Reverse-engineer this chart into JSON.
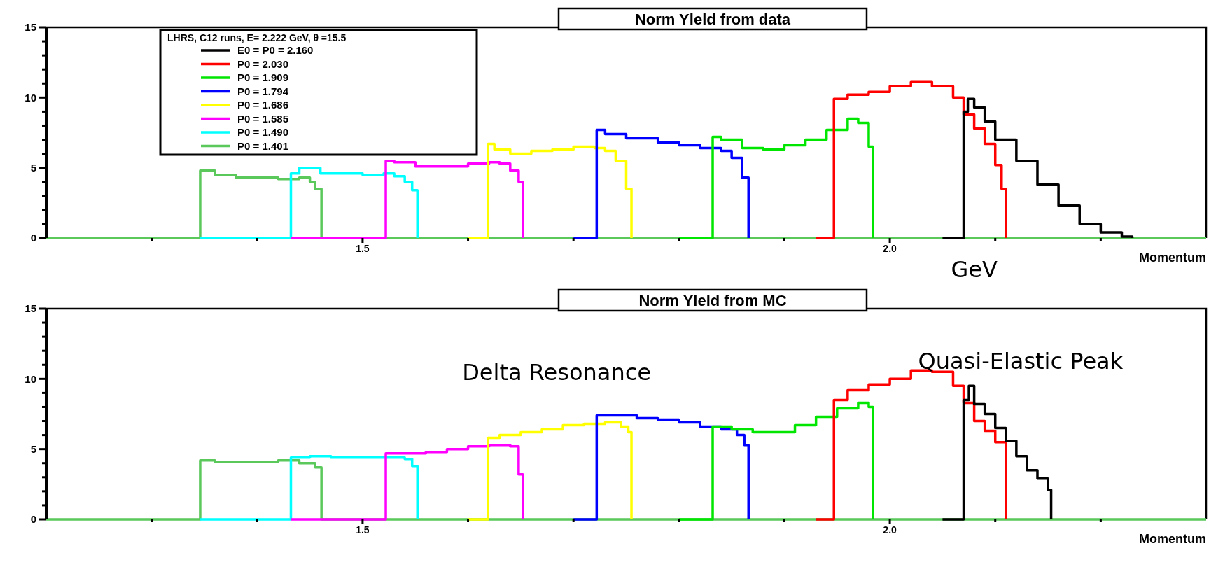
{
  "chart_data": [
    {
      "type": "step",
      "title": "Norm Yleld from data",
      "xlabel": "Momentum",
      "legend": "top left",
      "legend_title": "LHRS, C12 runs, E= 2.222 GeV, θ =15.5",
      "annotations": [
        "GeV"
      ],
      "xlim": [
        1.2,
        2.3
      ],
      "xticks": [
        {
          "value": 1.3,
          "label": null
        },
        {
          "value": 1.4,
          "label": null
        },
        {
          "value": 1.5,
          "label": "1.5"
        },
        {
          "value": 1.6,
          "label": null
        },
        {
          "value": 1.7,
          "label": null
        },
        {
          "value": 1.8,
          "label": null
        },
        {
          "value": 1.9,
          "label": null
        },
        {
          "value": 2.0,
          "label": "2.0"
        },
        {
          "value": 2.1,
          "label": null
        },
        {
          "value": 2.2,
          "label": null
        }
      ],
      "ylim": [
        0,
        15
      ],
      "yticks": [
        0,
        {
          "value": 1,
          "label": null
        },
        {
          "value": 2,
          "label": null
        },
        {
          "value": 3,
          "label": null
        },
        {
          "value": 4,
          "label": null
        },
        5,
        {
          "value": 6,
          "label": null
        },
        {
          "value": 7,
          "label": null
        },
        {
          "value": 8,
          "label": null
        },
        {
          "value": 9,
          "label": null
        },
        10,
        {
          "value": 11,
          "label": null
        },
        {
          "value": 12,
          "label": null
        },
        {
          "value": 13,
          "label": null
        },
        {
          "value": 14,
          "label": null
        },
        15
      ],
      "series": [
        {
          "name": "E0 = P0 = 2.160",
          "color": "#000000",
          "x": [
            2.05,
            2.07,
            2.074,
            2.08,
            2.09,
            2.1,
            2.12,
            2.14,
            2.16,
            2.18,
            2.2,
            2.22,
            2.23
          ],
          "values": [
            0,
            9.0,
            9.9,
            9.3,
            8.3,
            7.0,
            5.5,
            3.8,
            2.3,
            1.0,
            0.4,
            0.1,
            0
          ]
        },
        {
          "name": "P0 = 2.030",
          "color": "#ff0000",
          "x": [
            1.93,
            1.947,
            1.96,
            1.98,
            2.0,
            2.02,
            2.04,
            2.06,
            2.07,
            2.08,
            2.09,
            2.1,
            2.106,
            2.11
          ],
          "values": [
            0,
            9.9,
            10.2,
            10.4,
            10.8,
            11.1,
            10.8,
            10.0,
            8.8,
            7.8,
            6.7,
            5.2,
            3.5,
            0
          ]
        },
        {
          "name": "P0 = 1.909",
          "color": "#00e600",
          "x": [
            1.8,
            1.832,
            1.84,
            1.86,
            1.88,
            1.9,
            1.92,
            1.94,
            1.96,
            1.97,
            1.98,
            1.984
          ],
          "values": [
            0,
            7.2,
            7.0,
            6.4,
            6.3,
            6.6,
            7.0,
            7.7,
            8.5,
            8.2,
            6.5,
            0
          ]
        },
        {
          "name": "P0 = 1.794",
          "color": "#0000ff",
          "x": [
            1.7,
            1.722,
            1.73,
            1.75,
            1.78,
            1.8,
            1.82,
            1.84,
            1.85,
            1.86,
            1.866
          ],
          "values": [
            0,
            7.7,
            7.4,
            7.1,
            6.8,
            6.6,
            6.4,
            6.2,
            5.7,
            4.3,
            0
          ]
        },
        {
          "name": "P0 = 1.686",
          "color": "#ffff00",
          "x": [
            1.6,
            1.619,
            1.625,
            1.64,
            1.66,
            1.68,
            1.7,
            1.72,
            1.73,
            1.74,
            1.75,
            1.755
          ],
          "values": [
            0,
            6.7,
            6.3,
            6.0,
            6.2,
            6.3,
            6.5,
            6.4,
            6.2,
            5.5,
            3.5,
            0
          ]
        },
        {
          "name": "P0 = 1.585",
          "color": "#ff00ff",
          "x": [
            1.432,
            1.522,
            1.53,
            1.55,
            1.58,
            1.6,
            1.62,
            1.63,
            1.64,
            1.648,
            1.652
          ],
          "values": [
            0,
            5.5,
            5.4,
            5.1,
            5.1,
            5.3,
            5.4,
            5.3,
            4.8,
            4.0,
            0
          ]
        },
        {
          "name": "P0 = 1.490",
          "color": "#00ffff",
          "x": [
            1.346,
            1.432,
            1.44,
            1.46,
            1.48,
            1.5,
            1.52,
            1.53,
            1.54,
            1.547,
            1.552
          ],
          "values": [
            0,
            4.6,
            5.0,
            4.6,
            4.6,
            4.5,
            4.6,
            4.4,
            4.0,
            3.4,
            0
          ]
        },
        {
          "name": "P0 = 1.401",
          "color": "#5ac85a",
          "x": [
            1.2,
            1.346,
            1.36,
            1.38,
            1.4,
            1.42,
            1.44,
            1.45,
            1.455,
            1.461,
            2.3
          ],
          "values": [
            0,
            4.8,
            4.5,
            4.3,
            4.3,
            4.2,
            4.3,
            4.0,
            3.5,
            0,
            0
          ]
        }
      ]
    },
    {
      "type": "step",
      "title": "Norm Yleld from MC",
      "xlabel": "Momentum",
      "legend": false,
      "annotations": [
        "Delta Resonance",
        "Quasi-Elastic Peak"
      ],
      "xlim": [
        1.2,
        2.3
      ],
      "xticks": [
        {
          "value": 1.3,
          "label": null
        },
        {
          "value": 1.4,
          "label": null
        },
        {
          "value": 1.5,
          "label": "1.5"
        },
        {
          "value": 1.6,
          "label": null
        },
        {
          "value": 1.7,
          "label": null
        },
        {
          "value": 1.8,
          "label": null
        },
        {
          "value": 1.9,
          "label": null
        },
        {
          "value": 2.0,
          "label": "2.0"
        },
        {
          "value": 2.1,
          "label": null
        },
        {
          "value": 2.2,
          "label": null
        }
      ],
      "ylim": [
        0,
        15
      ],
      "yticks": [
        0,
        {
          "value": 1,
          "label": null
        },
        {
          "value": 2,
          "label": null
        },
        {
          "value": 3,
          "label": null
        },
        {
          "value": 4,
          "label": null
        },
        5,
        {
          "value": 6,
          "label": null
        },
        {
          "value": 7,
          "label": null
        },
        {
          "value": 8,
          "label": null
        },
        {
          "value": 9,
          "label": null
        },
        10,
        {
          "value": 11,
          "label": null
        },
        {
          "value": 12,
          "label": null
        },
        {
          "value": 13,
          "label": null
        },
        {
          "value": 14,
          "label": null
        },
        15
      ],
      "series": [
        {
          "color": "#000000",
          "x": [
            2.05,
            2.07,
            2.075,
            2.08,
            2.09,
            2.1,
            2.11,
            2.12,
            2.13,
            2.14,
            2.15,
            2.153
          ],
          "values": [
            0,
            8.5,
            9.5,
            8.2,
            7.5,
            6.5,
            5.6,
            4.5,
            3.5,
            2.9,
            2.1,
            0
          ]
        },
        {
          "color": "#ff0000",
          "x": [
            1.93,
            1.947,
            1.96,
            1.98,
            2.0,
            2.02,
            2.04,
            2.06,
            2.07,
            2.08,
            2.09,
            2.1,
            2.11
          ],
          "values": [
            0,
            8.5,
            9.2,
            9.6,
            10.0,
            10.6,
            10.5,
            9.5,
            8.3,
            7.0,
            6.3,
            5.5,
            0
          ]
        },
        {
          "color": "#00e600",
          "x": [
            1.8,
            1.832,
            1.85,
            1.87,
            1.89,
            1.91,
            1.93,
            1.95,
            1.97,
            1.98,
            1.984
          ],
          "values": [
            0,
            6.6,
            6.4,
            6.2,
            6.2,
            6.7,
            7.3,
            7.9,
            8.3,
            8.0,
            0
          ]
        },
        {
          "color": "#0000ff",
          "x": [
            1.7,
            1.722,
            1.74,
            1.76,
            1.78,
            1.8,
            1.82,
            1.84,
            1.855,
            1.862,
            1.866
          ],
          "values": [
            0,
            7.4,
            7.4,
            7.2,
            7.1,
            6.9,
            6.6,
            6.4,
            6.0,
            5.3,
            0
          ]
        },
        {
          "color": "#ffff00",
          "x": [
            1.6,
            1.619,
            1.63,
            1.65,
            1.67,
            1.69,
            1.71,
            1.73,
            1.745,
            1.752,
            1.755
          ],
          "values": [
            0,
            5.8,
            6.0,
            6.2,
            6.4,
            6.7,
            6.8,
            6.9,
            6.6,
            6.2,
            0
          ]
        },
        {
          "color": "#ff00ff",
          "x": [
            1.432,
            1.522,
            1.54,
            1.56,
            1.58,
            1.6,
            1.62,
            1.64,
            1.648,
            1.652
          ],
          "values": [
            0,
            4.7,
            4.7,
            4.8,
            5.0,
            5.2,
            5.3,
            5.2,
            3.2,
            0
          ]
        },
        {
          "color": "#00ffff",
          "x": [
            1.346,
            1.432,
            1.45,
            1.47,
            1.5,
            1.52,
            1.54,
            1.547,
            1.552
          ],
          "values": [
            0,
            4.4,
            4.5,
            4.4,
            4.4,
            4.4,
            4.3,
            3.8,
            0
          ]
        },
        {
          "color": "#5ac85a",
          "x": [
            1.2,
            1.346,
            1.36,
            1.38,
            1.4,
            1.42,
            1.44,
            1.455,
            1.461,
            2.3
          ],
          "values": [
            0,
            4.2,
            4.1,
            4.1,
            4.1,
            4.2,
            4.0,
            3.7,
            0,
            0
          ]
        }
      ]
    }
  ]
}
